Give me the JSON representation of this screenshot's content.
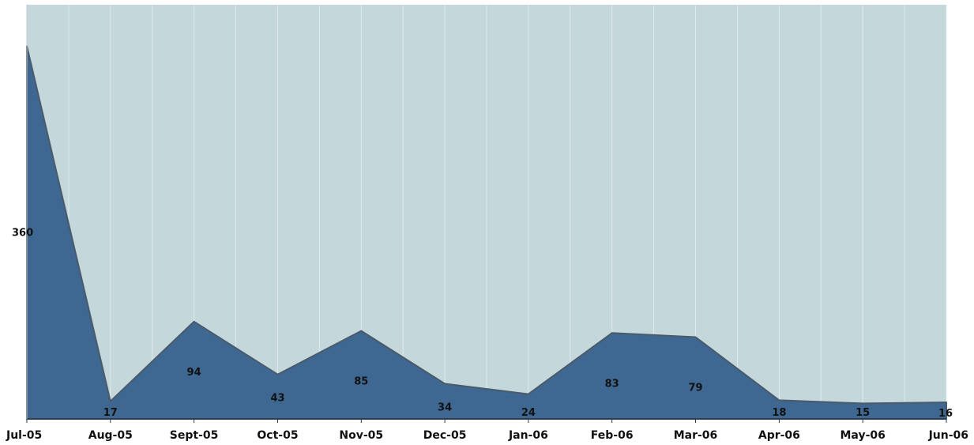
{
  "chart_data": {
    "type": "area",
    "title": "",
    "xlabel": "",
    "ylabel": "",
    "categories": [
      "Jul-05",
      "Aug-05",
      "Sept-05",
      "Oct-05",
      "Nov-05",
      "Dec-05",
      "Jan-06",
      "Feb-06",
      "Mar-06",
      "Apr-06",
      "May-06",
      "Jun-06"
    ],
    "values": [
      360,
      17,
      94,
      43,
      85,
      34,
      24,
      83,
      79,
      18,
      15,
      16
    ],
    "ylim": [
      0,
      400
    ],
    "grid": true,
    "legend": "none",
    "colors": {
      "plot_background": "#c4d8dc",
      "area_fill": "#3e6891",
      "area_stroke": "#4a5a6a",
      "grid": "#e4eef0",
      "axis": "#2a3d52"
    }
  }
}
